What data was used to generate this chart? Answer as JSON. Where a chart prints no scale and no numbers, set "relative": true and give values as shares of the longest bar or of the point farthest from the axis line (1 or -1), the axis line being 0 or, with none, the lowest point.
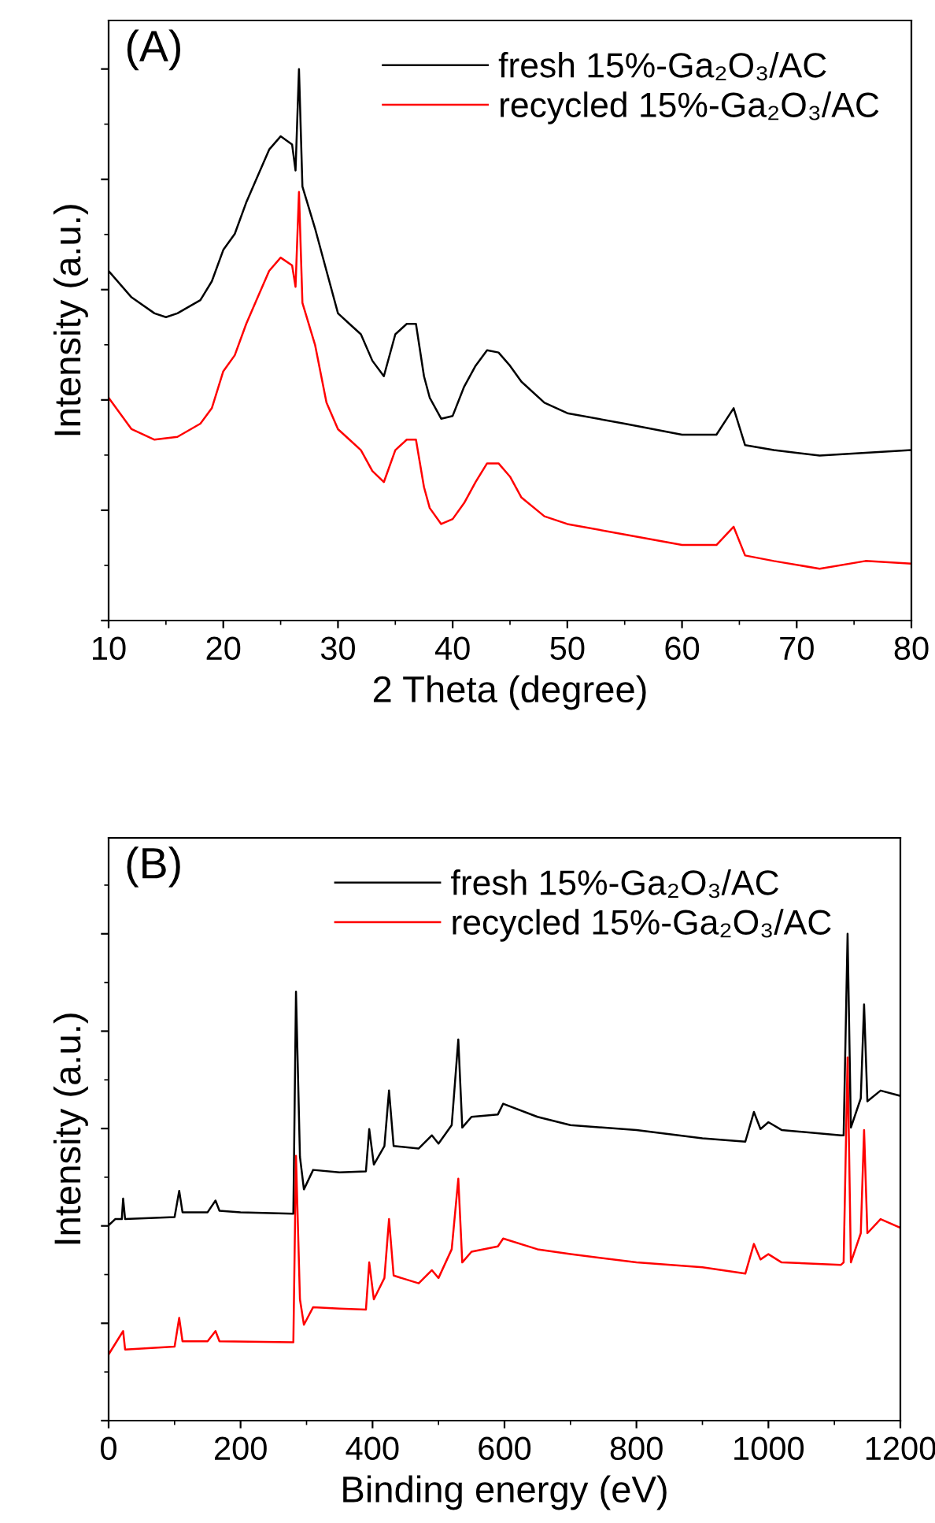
{
  "chart_data": [
    {
      "type": "line",
      "relative": true,
      "xlabel": "2 Theta (degree)",
      "ylabel": "Intensity (a.u.)",
      "annotations": [
        "(A)"
      ],
      "xlim": [
        10,
        80
      ],
      "xticks": [
        10,
        20,
        30,
        40,
        50,
        60,
        70,
        80
      ],
      "tick_labels": "x",
      "legend": "top right",
      "grid": false,
      "series": [
        {
          "name": "fresh 15%-Ga₂O₃/AC",
          "color": "#000000",
          "x": [
            10,
            12,
            14,
            15,
            16,
            18,
            19,
            20,
            21,
            22,
            23,
            24,
            25,
            26,
            26.3,
            26.6,
            26.9,
            28,
            29,
            30,
            31,
            32,
            33,
            34,
            35,
            36,
            36.8,
            37.5,
            38,
            39,
            40,
            41,
            42,
            43,
            44,
            45,
            46,
            48,
            50,
            55,
            60,
            63,
            64.5,
            65.5,
            68,
            72,
            76,
            80
          ],
          "values": [
            0.634,
            0.586,
            0.557,
            0.55,
            0.557,
            0.581,
            0.615,
            0.672,
            0.701,
            0.758,
            0.806,
            0.854,
            0.878,
            0.863,
            0.816,
            1.0,
            0.787,
            0.711,
            0.634,
            0.557,
            0.538,
            0.519,
            0.471,
            0.443,
            0.519,
            0.538,
            0.538,
            0.443,
            0.404,
            0.366,
            0.371,
            0.424,
            0.462,
            0.49,
            0.486,
            0.462,
            0.433,
            0.395,
            0.376,
            0.357,
            0.337,
            0.337,
            0.385,
            0.318,
            0.309,
            0.299,
            0.304,
            0.309
          ]
        },
        {
          "name": "recycled 15%-Ga₂O₃/AC",
          "color": "#ff0000",
          "x": [
            10,
            12,
            14,
            16,
            18,
            19,
            20,
            21,
            22,
            23,
            24,
            25,
            26,
            26.3,
            26.6,
            26.9,
            28,
            29,
            30,
            31,
            32,
            33,
            34,
            35,
            36,
            36.8,
            37.5,
            38,
            39,
            40,
            41,
            42,
            43,
            44,
            45,
            46,
            48,
            50,
            55,
            60,
            63,
            64.5,
            65.5,
            68,
            72,
            76,
            80
          ],
          "values": [
            0.404,
            0.347,
            0.328,
            0.333,
            0.357,
            0.385,
            0.452,
            0.481,
            0.538,
            0.586,
            0.634,
            0.658,
            0.644,
            0.605,
            0.777,
            0.576,
            0.5,
            0.395,
            0.347,
            0.328,
            0.309,
            0.271,
            0.251,
            0.309,
            0.328,
            0.328,
            0.242,
            0.204,
            0.175,
            0.184,
            0.213,
            0.251,
            0.285,
            0.285,
            0.261,
            0.223,
            0.189,
            0.175,
            0.156,
            0.137,
            0.137,
            0.17,
            0.118,
            0.108,
            0.094,
            0.108,
            0.103
          ]
        }
      ]
    },
    {
      "type": "line",
      "relative": true,
      "xlabel": "Binding energy (eV)",
      "ylabel": "Intensity (a.u.)",
      "annotations": [
        "(B)"
      ],
      "xlim": [
        0,
        1200
      ],
      "xticks": [
        0,
        200,
        400,
        600,
        800,
        1000,
        1200
      ],
      "tick_labels": "x",
      "legend": "top",
      "grid": false,
      "series": [
        {
          "name": "fresh 15%-Ga₂O₃/AC",
          "color": "#000000",
          "x": [
            0,
            10,
            20,
            22,
            25,
            100,
            107,
            112,
            150,
            162,
            168,
            200,
            280,
            284,
            290,
            296,
            310,
            350,
            390,
            395,
            402,
            418,
            425,
            432,
            470,
            490,
            500,
            520,
            530,
            536,
            550,
            590,
            598,
            650,
            700,
            800,
            900,
            965,
            978,
            988,
            1000,
            1020,
            1110,
            1114,
            1120,
            1125,
            1140,
            1145,
            1150,
            1170,
            1200
          ],
          "values": [
            0.401,
            0.414,
            0.414,
            0.456,
            0.414,
            0.418,
            0.472,
            0.428,
            0.428,
            0.452,
            0.431,
            0.428,
            0.425,
            0.881,
            0.542,
            0.475,
            0.515,
            0.51,
            0.512,
            0.599,
            0.526,
            0.564,
            0.678,
            0.564,
            0.559,
            0.586,
            0.569,
            0.607,
            0.783,
            0.602,
            0.624,
            0.629,
            0.651,
            0.624,
            0.607,
            0.597,
            0.58,
            0.573,
            0.634,
            0.599,
            0.613,
            0.597,
            0.586,
            0.586,
            1.0,
            0.602,
            0.662,
            0.855,
            0.656,
            0.678,
            0.667
          ]
        },
        {
          "name": "recycled 15%-Ga₂O₃/AC",
          "color": "#ff0000",
          "x": [
            0,
            22,
            25,
            100,
            107,
            112,
            150,
            162,
            168,
            280,
            284,
            290,
            296,
            310,
            350,
            390,
            395,
            402,
            418,
            425,
            432,
            470,
            490,
            500,
            520,
            530,
            536,
            550,
            590,
            598,
            650,
            700,
            800,
            900,
            965,
            978,
            988,
            1000,
            1020,
            1110,
            1114,
            1120,
            1125,
            1140,
            1145,
            1150,
            1170,
            1200
          ],
          "values": [
            0.136,
            0.184,
            0.146,
            0.152,
            0.211,
            0.163,
            0.163,
            0.184,
            0.163,
            0.161,
            0.544,
            0.249,
            0.197,
            0.233,
            0.23,
            0.228,
            0.325,
            0.249,
            0.293,
            0.414,
            0.298,
            0.282,
            0.309,
            0.293,
            0.352,
            0.497,
            0.325,
            0.347,
            0.358,
            0.374,
            0.352,
            0.342,
            0.325,
            0.315,
            0.302,
            0.363,
            0.331,
            0.342,
            0.325,
            0.32,
            0.325,
            0.746,
            0.325,
            0.385,
            0.597,
            0.385,
            0.414,
            0.396
          ]
        }
      ]
    }
  ]
}
